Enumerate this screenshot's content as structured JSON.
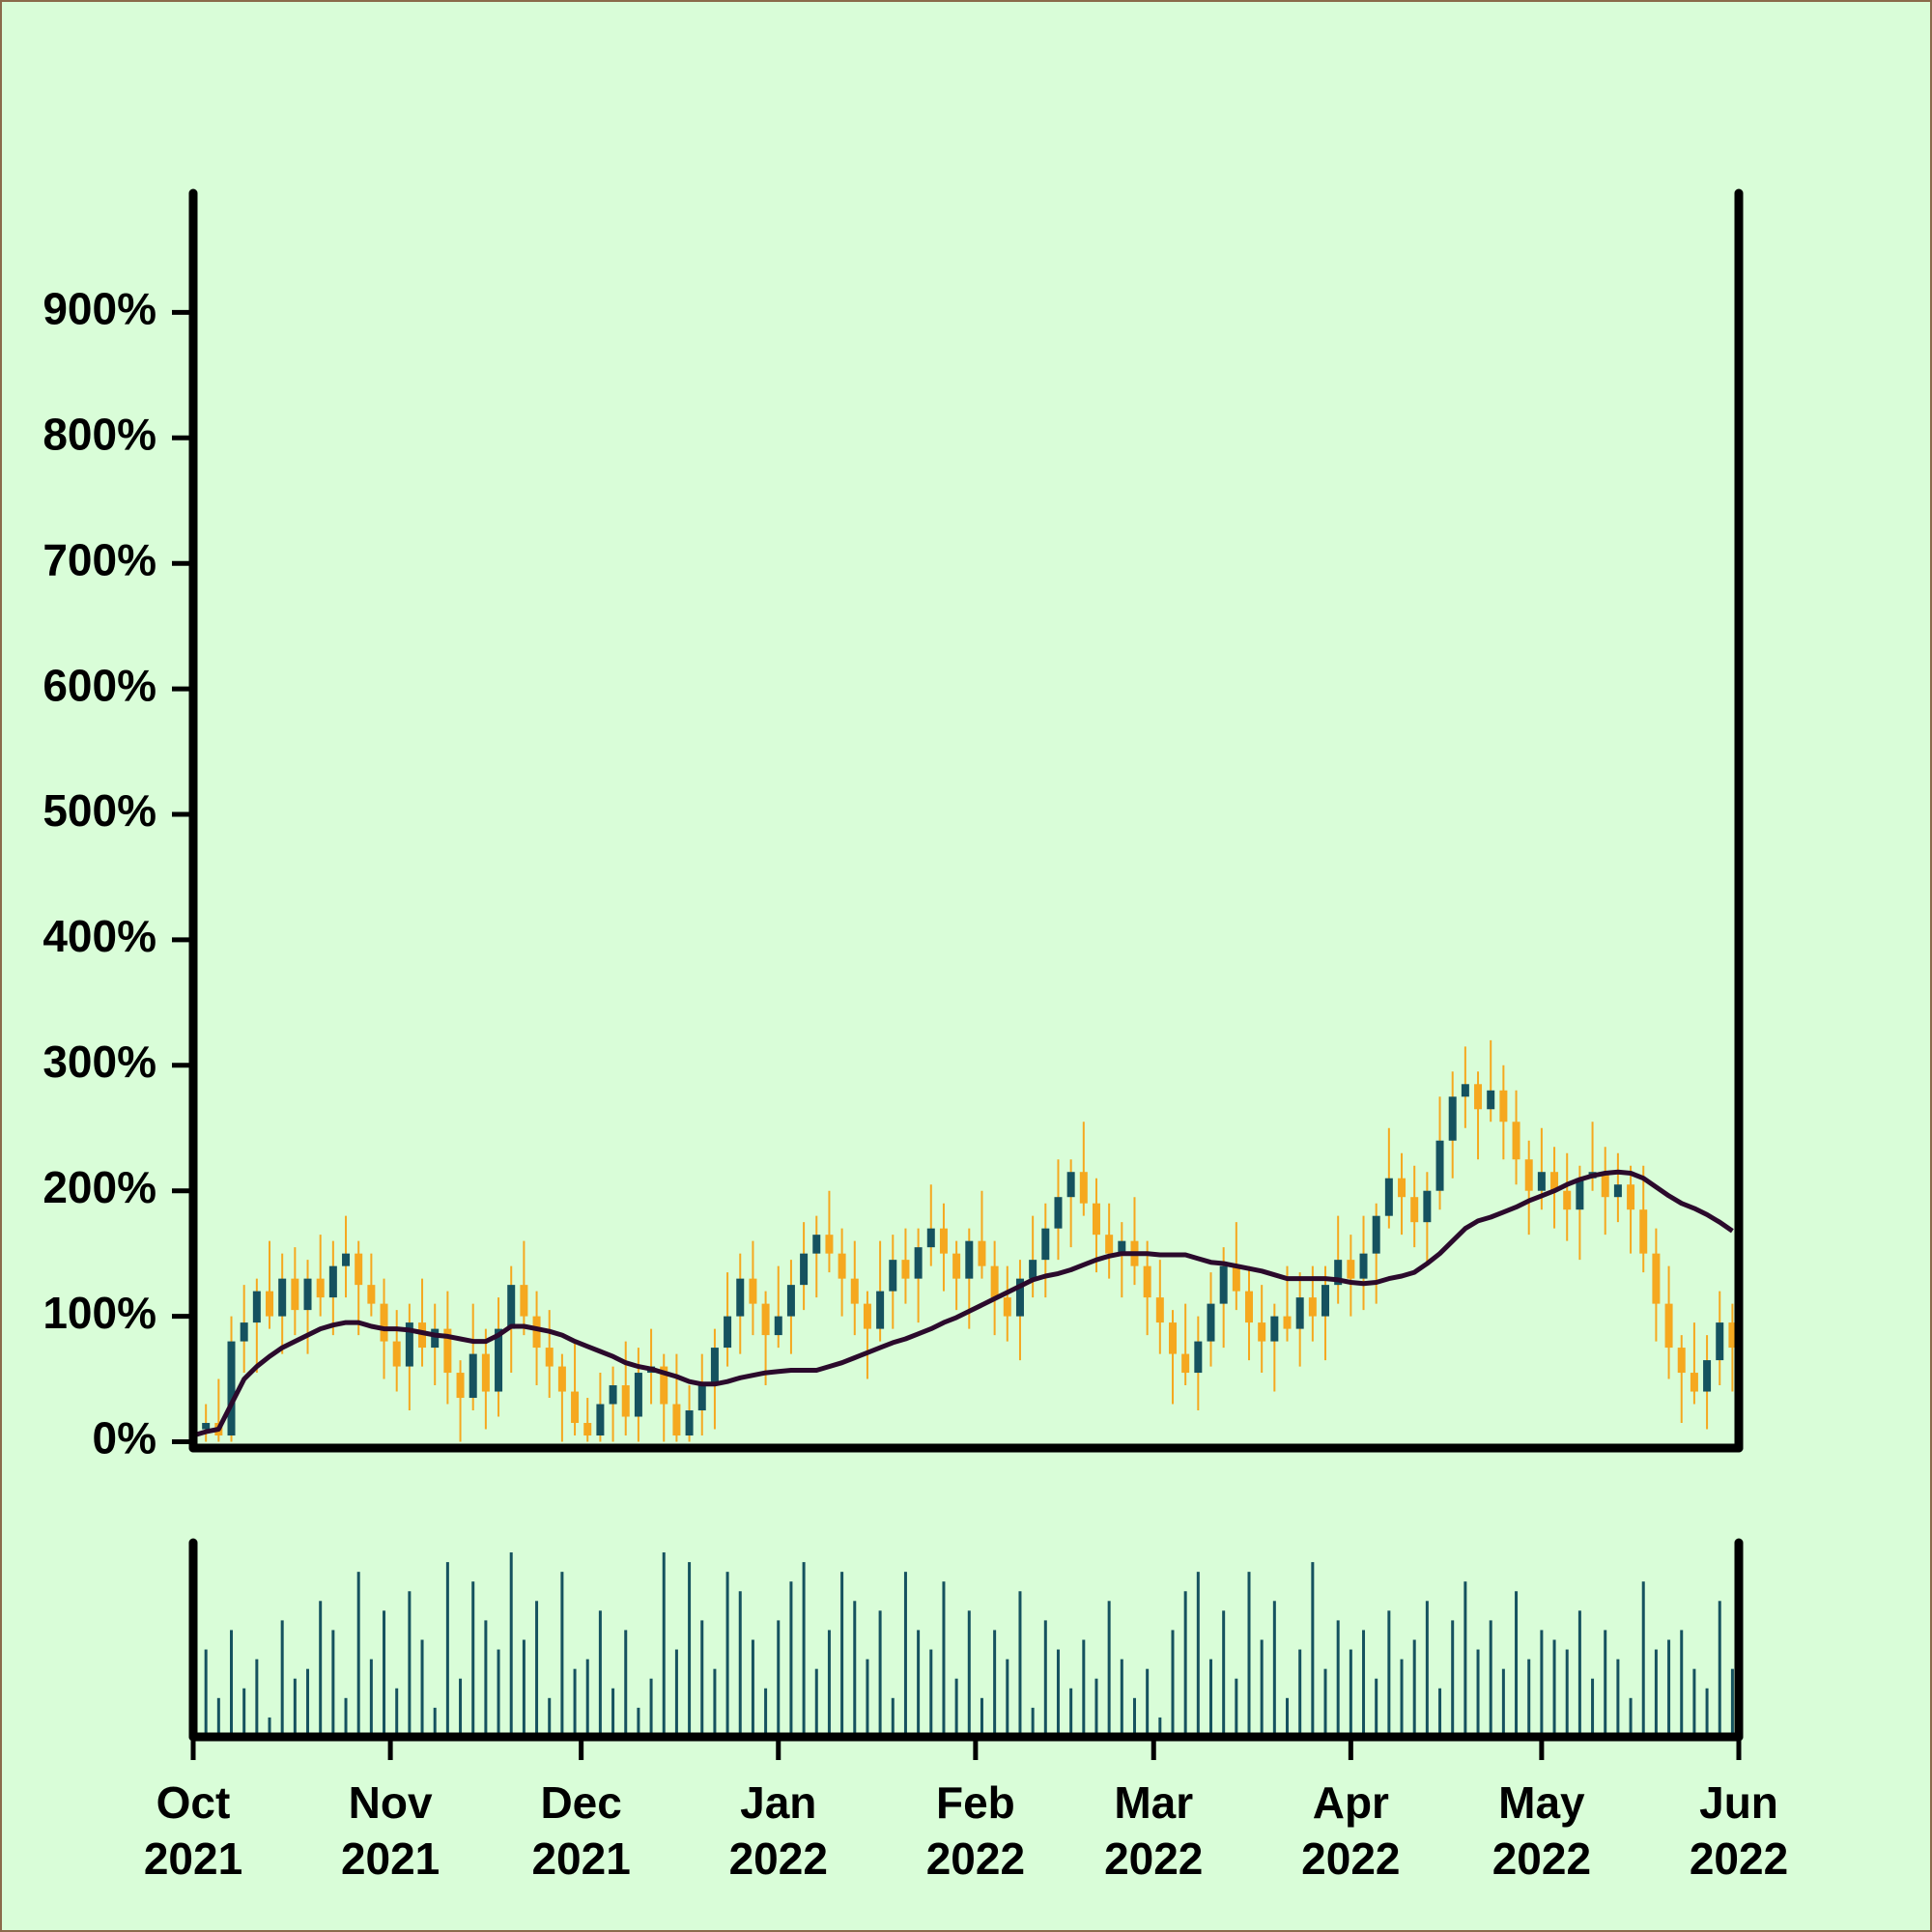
{
  "chart_data": {
    "type": "candlestick",
    "up_color": "#15525f",
    "down_color": "#f5a81f",
    "background": "#d9fdd8",
    "xlim": [
      0,
      243
    ],
    "xticks": [
      {
        "value": 0,
        "label": [
          "Oct",
          "2021"
        ]
      },
      {
        "value": 31,
        "label": [
          "Nov",
          "2021"
        ]
      },
      {
        "value": 61,
        "label": [
          "Dec",
          "2021"
        ]
      },
      {
        "value": 92,
        "label": [
          "Jan",
          "2022"
        ]
      },
      {
        "value": 123,
        "label": [
          "Feb",
          "2022"
        ]
      },
      {
        "value": 151,
        "label": [
          "Mar",
          "2022"
        ]
      },
      {
        "value": 182,
        "label": [
          "Apr",
          "2022"
        ]
      },
      {
        "value": 212,
        "label": [
          "May",
          "2022"
        ]
      },
      {
        "value": 243,
        "label": [
          "Jun",
          "2022"
        ]
      }
    ],
    "ylim": [
      -5,
      995
    ],
    "yticks": [
      {
        "value": 0,
        "label": "0%"
      },
      {
        "value": 100,
        "label": "100%"
      },
      {
        "value": 200,
        "label": "200%"
      },
      {
        "value": 300,
        "label": "300%"
      },
      {
        "value": 400,
        "label": "400%"
      },
      {
        "value": 500,
        "label": "500%"
      },
      {
        "value": 600,
        "label": "600%"
      },
      {
        "value": 700,
        "label": "700%"
      },
      {
        "value": 800,
        "label": "800%"
      },
      {
        "value": 900,
        "label": "900%"
      }
    ],
    "x": [
      0,
      2,
      4,
      6,
      8,
      10,
      12,
      14,
      16,
      18,
      20,
      22,
      24,
      26,
      28,
      30,
      32,
      34,
      36,
      38,
      40,
      42,
      44,
      46,
      48,
      50,
      52,
      54,
      56,
      58,
      60,
      62,
      64,
      66,
      68,
      70,
      72,
      74,
      76,
      78,
      80,
      82,
      84,
      86,
      88,
      90,
      92,
      94,
      96,
      98,
      100,
      102,
      104,
      106,
      108,
      110,
      112,
      114,
      116,
      118,
      120,
      122,
      124,
      126,
      128,
      130,
      132,
      134,
      136,
      138,
      140,
      142,
      144,
      146,
      148,
      150,
      152,
      154,
      156,
      158,
      160,
      162,
      164,
      166,
      168,
      170,
      172,
      174,
      176,
      178,
      180,
      182,
      184,
      186,
      188,
      190,
      192,
      194,
      196,
      198,
      200,
      202,
      204,
      206,
      208,
      210,
      212,
      214,
      216,
      218,
      220,
      222,
      224,
      226,
      228,
      230,
      232,
      234,
      236,
      238,
      240,
      242
    ],
    "open": [
      0,
      10,
      15,
      5,
      80,
      95,
      120,
      100,
      130,
      105,
      130,
      115,
      140,
      150,
      125,
      110,
      80,
      60,
      95,
      75,
      90,
      55,
      35,
      70,
      40,
      90,
      125,
      100,
      75,
      60,
      40,
      15,
      5,
      30,
      45,
      20,
      55,
      60,
      30,
      5,
      25,
      45,
      75,
      100,
      130,
      110,
      85,
      100,
      125,
      150,
      165,
      150,
      130,
      110,
      90,
      120,
      145,
      130,
      155,
      170,
      150,
      130,
      160,
      140,
      115,
      100,
      130,
      145,
      170,
      195,
      215,
      190,
      165,
      150,
      160,
      140,
      115,
      95,
      70,
      55,
      80,
      110,
      140,
      120,
      95,
      80,
      100,
      90,
      115,
      100,
      125,
      145,
      130,
      150,
      180,
      210,
      195,
      175,
      200,
      240,
      275,
      285,
      265,
      280,
      255,
      225,
      200,
      215,
      200,
      185,
      210,
      215,
      195,
      205,
      185,
      150,
      110,
      75,
      55,
      40,
      65,
      95
    ],
    "high": [
      35,
      30,
      50,
      100,
      125,
      130,
      160,
      150,
      155,
      145,
      165,
      160,
      180,
      160,
      150,
      130,
      105,
      110,
      130,
      110,
      120,
      65,
      110,
      90,
      115,
      140,
      160,
      120,
      105,
      70,
      80,
      35,
      55,
      60,
      80,
      75,
      90,
      70,
      70,
      45,
      70,
      90,
      135,
      150,
      160,
      120,
      140,
      145,
      175,
      180,
      200,
      170,
      160,
      120,
      160,
      165,
      170,
      170,
      205,
      190,
      160,
      170,
      200,
      160,
      140,
      145,
      180,
      190,
      225,
      225,
      255,
      210,
      190,
      175,
      195,
      160,
      145,
      105,
      110,
      100,
      135,
      155,
      175,
      140,
      125,
      110,
      140,
      135,
      140,
      140,
      180,
      165,
      180,
      190,
      250,
      230,
      220,
      215,
      275,
      295,
      315,
      295,
      320,
      300,
      280,
      240,
      250,
      235,
      230,
      220,
      255,
      235,
      230,
      220,
      220,
      170,
      140,
      85,
      95,
      85,
      120,
      110
    ],
    "low": [
      0,
      0,
      0,
      0,
      55,
      55,
      90,
      70,
      85,
      70,
      100,
      85,
      115,
      85,
      100,
      50,
      40,
      25,
      60,
      45,
      30,
      0,
      25,
      10,
      20,
      55,
      85,
      45,
      35,
      0,
      5,
      0,
      0,
      0,
      5,
      0,
      30,
      0,
      0,
      0,
      5,
      10,
      60,
      70,
      85,
      45,
      75,
      70,
      105,
      115,
      135,
      100,
      85,
      50,
      80,
      90,
      110,
      95,
      140,
      120,
      105,
      90,
      130,
      85,
      80,
      65,
      115,
      115,
      145,
      155,
      180,
      135,
      130,
      115,
      125,
      85,
      70,
      30,
      45,
      25,
      60,
      75,
      105,
      65,
      55,
      40,
      80,
      60,
      80,
      65,
      110,
      100,
      105,
      110,
      170,
      165,
      155,
      140,
      185,
      210,
      250,
      225,
      255,
      225,
      205,
      165,
      185,
      170,
      160,
      145,
      200,
      165,
      175,
      150,
      135,
      80,
      50,
      15,
      30,
      10,
      45,
      40
    ],
    "close": [
      10,
      15,
      5,
      80,
      95,
      120,
      100,
      130,
      105,
      130,
      115,
      140,
      150,
      125,
      110,
      80,
      60,
      95,
      75,
      90,
      55,
      35,
      70,
      40,
      90,
      125,
      100,
      75,
      60,
      40,
      15,
      5,
      30,
      45,
      20,
      55,
      60,
      30,
      5,
      25,
      45,
      75,
      100,
      130,
      110,
      85,
      100,
      125,
      150,
      165,
      150,
      130,
      110,
      90,
      120,
      145,
      130,
      155,
      170,
      150,
      130,
      160,
      140,
      115,
      100,
      130,
      145,
      170,
      195,
      215,
      190,
      165,
      150,
      160,
      140,
      115,
      95,
      70,
      55,
      80,
      110,
      140,
      120,
      95,
      80,
      100,
      90,
      115,
      100,
      125,
      145,
      130,
      150,
      180,
      210,
      195,
      175,
      200,
      240,
      275,
      285,
      265,
      280,
      255,
      225,
      200,
      215,
      200,
      185,
      210,
      215,
      195,
      205,
      185,
      150,
      110,
      75,
      55,
      40,
      65,
      95,
      75
    ],
    "ma": {
      "color": "#2b0a2c",
      "values": [
        5,
        8,
        10,
        30,
        50,
        60,
        68,
        75,
        80,
        85,
        90,
        93,
        95,
        95,
        92,
        90,
        90,
        89,
        87,
        85,
        84,
        82,
        80,
        80,
        85,
        92,
        92,
        90,
        88,
        85,
        80,
        76,
        72,
        68,
        63,
        60,
        58,
        55,
        52,
        48,
        46,
        46,
        48,
        51,
        53,
        55,
        56,
        57,
        57,
        57,
        60,
        63,
        67,
        71,
        75,
        79,
        82,
        86,
        90,
        95,
        99,
        104,
        109,
        114,
        119,
        124,
        129,
        132,
        134,
        137,
        141,
        145,
        148,
        150,
        150,
        150,
        149,
        149,
        149,
        146,
        143,
        142,
        140,
        138,
        136,
        133,
        130,
        130,
        130,
        130,
        129,
        127,
        126,
        127,
        130,
        132,
        135,
        142,
        150,
        160,
        170,
        176,
        179,
        183,
        187,
        192,
        196,
        200,
        205,
        209,
        212,
        214,
        215,
        214,
        210,
        203,
        196,
        190,
        186,
        181,
        175,
        168
      ]
    },
    "volume": {
      "color": "#15525f",
      "ylim": [
        0,
        100
      ],
      "values": [
        5,
        45,
        20,
        55,
        25,
        40,
        10,
        60,
        30,
        35,
        70,
        55,
        20,
        85,
        40,
        65,
        25,
        75,
        50,
        15,
        90,
        30,
        80,
        60,
        45,
        95,
        50,
        70,
        20,
        85,
        35,
        40,
        65,
        25,
        55,
        15,
        30,
        95,
        45,
        90,
        60,
        35,
        85,
        75,
        50,
        25,
        60,
        80,
        90,
        35,
        55,
        85,
        70,
        40,
        65,
        20,
        85,
        55,
        45,
        80,
        30,
        65,
        20,
        55,
        40,
        75,
        15,
        60,
        45,
        25,
        50,
        30,
        70,
        40,
        20,
        35,
        10,
        55,
        75,
        85,
        40,
        65,
        30,
        85,
        50,
        70,
        20,
        45,
        90,
        35,
        60,
        45,
        55,
        30,
        65,
        40,
        50,
        70,
        25,
        60,
        80,
        45,
        60,
        35,
        75,
        40,
        55,
        50,
        45,
        65,
        30,
        55,
        40,
        20,
        80,
        45,
        50,
        55,
        35,
        25,
        70,
        35
      ]
    }
  }
}
